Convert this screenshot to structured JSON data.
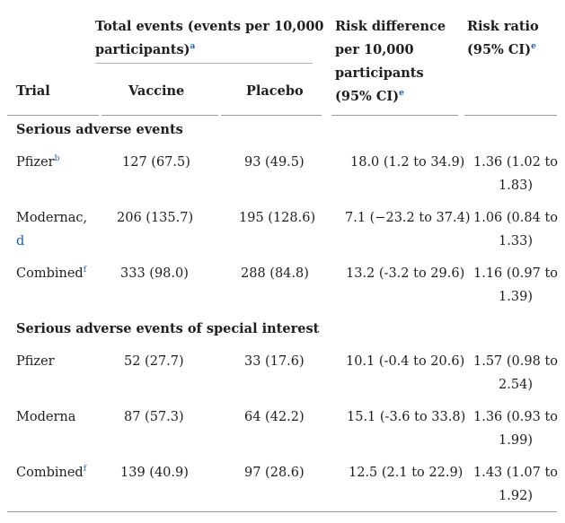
{
  "header": {
    "group_label": "Total events (events per 10,000 participants)",
    "group_label_line1": "Total events (events per 10,000",
    "group_label_line2": "participants)",
    "group_footnote": "a",
    "risk_difference_line1": "Risk difference",
    "risk_difference_line2": "per 10,000",
    "risk_difference_line3": "participants",
    "risk_difference_line4": "(95% CI)",
    "risk_difference_footnote": "e",
    "risk_ratio_line1": "Risk ratio",
    "risk_ratio_line2": "(95% CI)",
    "risk_ratio_footnote": "e",
    "col_trial": "Trial",
    "col_vaccine": "Vaccine",
    "col_placebo": "Placebo"
  },
  "sections": [
    {
      "title": "Serious adverse events",
      "rows": [
        {
          "trial": "Pfizer",
          "footnote": "b",
          "vaccine": "127 (67.5)",
          "placebo": "93 (49.5)",
          "risk_difference": "18.0 (1.2 to 34.9)",
          "risk_ratio_line1": "1.36 (1.02 to",
          "risk_ratio_line2": "1.83)"
        },
        {
          "trial_line1": "Modernac,",
          "trial_line2": "d",
          "vaccine": "206 (135.7)",
          "placebo": "195 (128.6)",
          "risk_difference": "7.1 (−23.2 to 37.4)",
          "risk_ratio_line1": "1.06 (0.84 to",
          "risk_ratio_line2": "1.33)"
        },
        {
          "trial": "Combined",
          "footnote": "f",
          "vaccine": "333 (98.0)",
          "placebo": "288 (84.8)",
          "risk_difference": "13.2 (-3.2 to 29.6)",
          "risk_ratio_line1": "1.16 (0.97 to",
          "risk_ratio_line2": "1.39)"
        }
      ]
    },
    {
      "title": "Serious adverse events of special interest",
      "rows": [
        {
          "trial": "Pfizer",
          "vaccine": "52 (27.7)",
          "placebo": "33 (17.6)",
          "risk_difference": "10.1 (-0.4 to 20.6)",
          "risk_ratio_line1": "1.57 (0.98 to",
          "risk_ratio_line2": "2.54)"
        },
        {
          "trial": "Moderna",
          "vaccine": "87 (57.3)",
          "placebo": "64 (42.2)",
          "risk_difference": "15.1 (-3.6 to 33.8)",
          "risk_ratio_line1": "1.36 (0.93 to",
          "risk_ratio_line2": "1.99)"
        },
        {
          "trial": "Combined",
          "footnote": "f",
          "vaccine": "139 (40.9)",
          "placebo": "97 (28.6)",
          "risk_difference": "12.5 (2.1 to 22.9)",
          "risk_ratio_line1": "1.43 (1.07 to",
          "risk_ratio_line2": "1.92)"
        }
      ]
    }
  ]
}
